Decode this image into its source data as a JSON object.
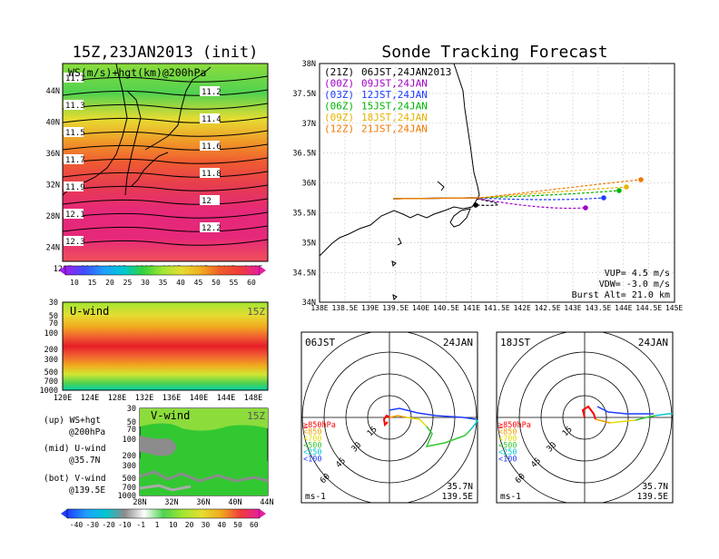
{
  "left_title": "15Z,23JAN2013 (init)",
  "right_title": "Sonde Tracking Forecast",
  "top_map": {
    "label": "WS(m/s)+hgt(km)@200hPa",
    "lat_ticks": [
      "44N",
      "40N",
      "36N",
      "32N",
      "28N",
      "24N"
    ],
    "lon_ticks": [
      "120E",
      "124E",
      "128E",
      "132E",
      "136E",
      "140E",
      "144E",
      "148E"
    ],
    "contour_labels": [
      "11.1",
      "11.2",
      "11.3",
      "11.4",
      "11.5",
      "11.6",
      "11.7",
      "11.8",
      "11.9",
      "12",
      "12.1",
      "12.2",
      "12.3"
    ],
    "colorbar_ticks": [
      "10",
      "15",
      "20",
      "25",
      "30",
      "35",
      "40",
      "45",
      "50",
      "55",
      "60"
    ],
    "colorbar_colors": [
      "#a01ef0",
      "#6e3cff",
      "#2864ff",
      "#1ea0ff",
      "#00c8d2",
      "#00d28c",
      "#32d23c",
      "#a0e632",
      "#e6dc32",
      "#f0aa1e",
      "#f07828",
      "#f03c3c",
      "#e6288c",
      "#e61ea0"
    ]
  },
  "mid_panel": {
    "label": "U-wind",
    "time": "15Z",
    "y_ticks": [
      "30",
      "50",
      "70",
      "100",
      "200",
      "300",
      "500",
      "700",
      "1000"
    ],
    "x_ticks": [
      "120E",
      "124E",
      "128E",
      "132E",
      "136E",
      "140E",
      "144E",
      "148E"
    ]
  },
  "bot_panel": {
    "label": "V-wind",
    "time": "15Z",
    "y_ticks": [
      "30",
      "50",
      "70",
      "100",
      "200",
      "300",
      "500",
      "700",
      "1000"
    ],
    "x_ticks": [
      "28N",
      "32N",
      "36N",
      "40N",
      "44N"
    ],
    "colorbar_ticks": [
      "-40",
      "-30",
      "-20",
      "-10",
      "-1",
      "1",
      "10",
      "20",
      "30",
      "40",
      "50",
      "60"
    ]
  },
  "legend_notes": [
    {
      "line1": "(up) WS+hgt",
      "line2": "@200hPa"
    },
    {
      "line1": "(mid) U-wind",
      "line2": "@35.7N"
    },
    {
      "line1": "(bot) V-wind",
      "line2": "@139.5E"
    }
  ],
  "track_map": {
    "lat_ticks": [
      "38N",
      "37.5N",
      "37N",
      "36.5N",
      "36N",
      "35.5N",
      "35N",
      "34.5N",
      "34N"
    ],
    "lon_ticks": [
      "138E",
      "138.5E",
      "139E",
      "139.5E",
      "140E",
      "140.5E",
      "141E",
      "141.5E",
      "142E",
      "142.5E",
      "143E",
      "143.5E",
      "144E",
      "144.5E",
      "145E"
    ],
    "legend": [
      {
        "code": "(21Z)",
        "time": "06JST,24JAN2013",
        "color": "#000000"
      },
      {
        "code": "(00Z)",
        "time": "09JST,24JAN",
        "color": "#a000c8"
      },
      {
        "code": "(03Z)",
        "time": "12JST,24JAN",
        "color": "#1e3cff"
      },
      {
        "code": "(06Z)",
        "time": "15JST,24JAN",
        "color": "#00b400"
      },
      {
        "code": "(09Z)",
        "time": "18JST,24JAN",
        "color": "#e6b400"
      },
      {
        "code": "(12Z)",
        "time": "21JST,24JAN",
        "color": "#f07800"
      }
    ],
    "info": [
      "VUP= 4.5 m/s",
      "VDW= -3.0 m/s",
      "Burst Alt= 21.0 km"
    ]
  },
  "hodographs": [
    {
      "time": "06JST",
      "date": "24JAN",
      "loc_lat": "35.7N",
      "loc_lon": "139.5E",
      "unit": "ms-1",
      "rings": [
        "15",
        "30",
        "45",
        "60"
      ],
      "levels": [
        {
          "label": "≧850hPa",
          "color": "#ff0000"
        },
        {
          "label": "<850",
          "color": "#f0a000"
        },
        {
          "label": "<700",
          "color": "#e6dc00"
        },
        {
          "label": "<500",
          "color": "#32c832"
        },
        {
          "label": "<250",
          "color": "#00c8d2"
        },
        {
          "label": "<100",
          "color": "#1e3cff"
        }
      ]
    },
    {
      "time": "18JST",
      "date": "24JAN",
      "loc_lat": "35.7N",
      "loc_lon": "139.5E",
      "unit": "ms-1",
      "rings": [
        "15",
        "30",
        "45",
        "60"
      ],
      "levels": [
        {
          "label": "≧850hPa",
          "color": "#ff0000"
        },
        {
          "label": "<850",
          "color": "#f0a000"
        },
        {
          "label": "<700",
          "color": "#e6dc00"
        },
        {
          "label": "<500",
          "color": "#32c832"
        },
        {
          "label": "<250",
          "color": "#00c8d2"
        },
        {
          "label": "<100",
          "color": "#1e3cff"
        }
      ]
    }
  ]
}
